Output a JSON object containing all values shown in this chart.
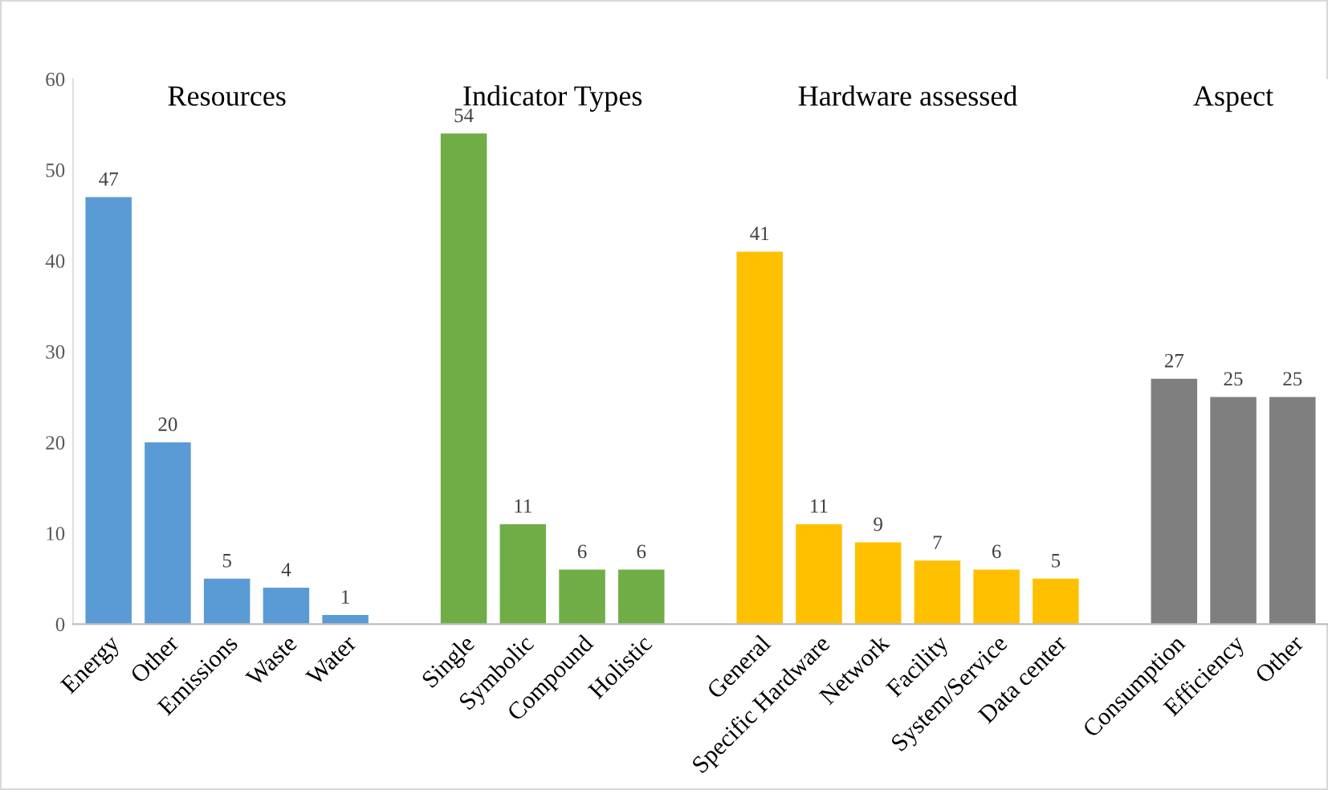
{
  "chart_data": {
    "type": "bar",
    "categories": [
      "Energy",
      "Other",
      "Emissions",
      "Waste",
      "Water",
      null,
      "Single",
      "Symbolic",
      "Compound",
      "Holistic",
      null,
      "General",
      "Specific Hardware",
      "Network",
      "Facility",
      "System/Service",
      "Data center",
      null,
      "Consumption",
      "Efficiency",
      "Other"
    ],
    "values": [
      47,
      20,
      5,
      4,
      1,
      null,
      54,
      11,
      6,
      6,
      null,
      41,
      11,
      9,
      7,
      6,
      5,
      null,
      27,
      25,
      25
    ],
    "colors": [
      "#5b9bd5",
      "#5b9bd5",
      "#5b9bd5",
      "#5b9bd5",
      "#5b9bd5",
      null,
      "#70ad47",
      "#70ad47",
      "#70ad47",
      "#70ad47",
      null,
      "#ffc000",
      "#ffc000",
      "#ffc000",
      "#ffc000",
      "#ffc000",
      "#ffc000",
      null,
      "#7f7f7f",
      "#7f7f7f",
      "#7f7f7f"
    ],
    "annotations": [
      "Resources",
      "Indicator Types",
      "Hardware assessed",
      "Aspect"
    ],
    "ylim": [
      0,
      60
    ],
    "yticks": [
      0,
      10,
      20,
      30,
      40,
      50,
      60
    ],
    "data_labels": true,
    "grid": false,
    "legend": false
  }
}
